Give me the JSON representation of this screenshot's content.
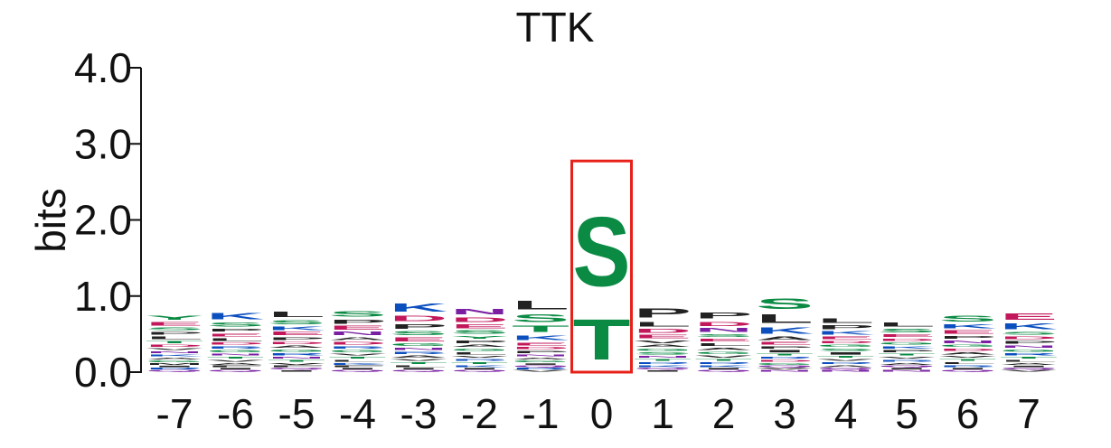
{
  "chart_data": {
    "type": "sequence-logo",
    "title": "TTK",
    "ylabel": "bits",
    "ylim": [
      0,
      4
    ],
    "yticks": [
      {
        "value": 0,
        "label": "0.0"
      },
      {
        "value": 1,
        "label": "1.0"
      },
      {
        "value": 2,
        "label": "2.0"
      },
      {
        "value": 3,
        "label": "3.0"
      },
      {
        "value": 4,
        "label": "4.0"
      }
    ],
    "positions": [
      {
        "label": "-7",
        "letters": [
          {
            "char": "Y",
            "bits": 0.09
          },
          {
            "char": "E",
            "bits": 0.07
          },
          {
            "char": "L",
            "bits": 0.06
          },
          {
            "char": "P",
            "bits": 0.06
          },
          {
            "char": "D",
            "bits": 0.05
          },
          {
            "char": "S",
            "bits": 0.06
          },
          {
            "char": "T",
            "bits": 0.05
          },
          {
            "char": "G",
            "bits": 0.04
          },
          {
            "char": "A",
            "bits": 0.04
          },
          {
            "char": "K",
            "bits": 0.04
          },
          {
            "char": "N",
            "bits": 0.04
          },
          {
            "char": "Q",
            "bits": 0.03
          },
          {
            "char": "V",
            "bits": 0.04
          },
          {
            "char": "R",
            "bits": 0.03
          },
          {
            "char": "I",
            "bits": 0.03
          },
          {
            "char": "M",
            "bits": 0.03
          }
        ]
      },
      {
        "label": "-6",
        "letters": [
          {
            "char": "K",
            "bits": 0.13
          },
          {
            "char": "S",
            "bits": 0.09
          },
          {
            "char": "L",
            "bits": 0.06
          },
          {
            "char": "E",
            "bits": 0.06
          },
          {
            "char": "P",
            "bits": 0.06
          },
          {
            "char": "G",
            "bits": 0.05
          },
          {
            "char": "R",
            "bits": 0.05
          },
          {
            "char": "D",
            "bits": 0.05
          },
          {
            "char": "A",
            "bits": 0.04
          },
          {
            "char": "V",
            "bits": 0.04
          },
          {
            "char": "T",
            "bits": 0.04
          },
          {
            "char": "N",
            "bits": 0.04
          },
          {
            "char": "Q",
            "bits": 0.03
          },
          {
            "char": "I",
            "bits": 0.03
          },
          {
            "char": "F",
            "bits": 0.03
          }
        ]
      },
      {
        "label": "-5",
        "letters": [
          {
            "char": "L",
            "bits": 0.11
          },
          {
            "char": "S",
            "bits": 0.09
          },
          {
            "char": "E",
            "bits": 0.07
          },
          {
            "char": "K",
            "bits": 0.07
          },
          {
            "char": "P",
            "bits": 0.06
          },
          {
            "char": "R",
            "bits": 0.05
          },
          {
            "char": "G",
            "bits": 0.05
          },
          {
            "char": "A",
            "bits": 0.05
          },
          {
            "char": "D",
            "bits": 0.05
          },
          {
            "char": "V",
            "bits": 0.04
          },
          {
            "char": "T",
            "bits": 0.04
          },
          {
            "char": "N",
            "bits": 0.04
          },
          {
            "char": "I",
            "bits": 0.03
          },
          {
            "char": "Q",
            "bits": 0.03
          },
          {
            "char": "F",
            "bits": 0.03
          }
        ]
      },
      {
        "label": "-4",
        "letters": [
          {
            "char": "S",
            "bits": 0.11
          },
          {
            "char": "P",
            "bits": 0.09
          },
          {
            "char": "E",
            "bits": 0.08
          },
          {
            "char": "N",
            "bits": 0.07
          },
          {
            "char": "D",
            "bits": 0.06
          },
          {
            "char": "A",
            "bits": 0.06
          },
          {
            "char": "G",
            "bits": 0.05
          },
          {
            "char": "R",
            "bits": 0.05
          },
          {
            "char": "K",
            "bits": 0.04
          },
          {
            "char": "L",
            "bits": 0.04
          },
          {
            "char": "T",
            "bits": 0.04
          },
          {
            "char": "V",
            "bits": 0.04
          },
          {
            "char": "Q",
            "bits": 0.03
          },
          {
            "char": "I",
            "bits": 0.03
          },
          {
            "char": "F",
            "bits": 0.03
          }
        ]
      },
      {
        "label": "-3",
        "letters": [
          {
            "char": "K",
            "bits": 0.17
          },
          {
            "char": "D",
            "bits": 0.11
          },
          {
            "char": "P",
            "bits": 0.1
          },
          {
            "char": "E",
            "bits": 0.08
          },
          {
            "char": "S",
            "bits": 0.08
          },
          {
            "char": "G",
            "bits": 0.06
          },
          {
            "char": "A",
            "bits": 0.05
          },
          {
            "char": "R",
            "bits": 0.05
          },
          {
            "char": "N",
            "bits": 0.05
          },
          {
            "char": "L",
            "bits": 0.04
          },
          {
            "char": "T",
            "bits": 0.04
          },
          {
            "char": "V",
            "bits": 0.04
          },
          {
            "char": "Q",
            "bits": 0.03
          },
          {
            "char": "I",
            "bits": 0.03
          }
        ]
      },
      {
        "label": "-2",
        "letters": [
          {
            "char": "N",
            "bits": 0.11
          },
          {
            "char": "D",
            "bits": 0.1
          },
          {
            "char": "E",
            "bits": 0.08
          },
          {
            "char": "S",
            "bits": 0.07
          },
          {
            "char": "P",
            "bits": 0.06
          },
          {
            "char": "Y",
            "bits": 0.06
          },
          {
            "char": "L",
            "bits": 0.05
          },
          {
            "char": "G",
            "bits": 0.05
          },
          {
            "char": "A",
            "bits": 0.05
          },
          {
            "char": "K",
            "bits": 0.04
          },
          {
            "char": "T",
            "bits": 0.04
          },
          {
            "char": "R",
            "bits": 0.04
          },
          {
            "char": "V",
            "bits": 0.04
          },
          {
            "char": "Q",
            "bits": 0.03
          },
          {
            "char": "I",
            "bits": 0.03
          }
        ]
      },
      {
        "label": "-1",
        "letters": [
          {
            "char": "L",
            "bits": 0.18
          },
          {
            "char": "S",
            "bits": 0.16
          },
          {
            "char": "T",
            "bits": 0.13
          },
          {
            "char": "K",
            "bits": 0.1
          },
          {
            "char": "E",
            "bits": 0.06
          },
          {
            "char": "P",
            "bits": 0.05
          },
          {
            "char": "D",
            "bits": 0.05
          },
          {
            "char": "G",
            "bits": 0.04
          },
          {
            "char": "A",
            "bits": 0.04
          },
          {
            "char": "N",
            "bits": 0.04
          },
          {
            "char": "V",
            "bits": 0.03
          },
          {
            "char": "R",
            "bits": 0.03
          },
          {
            "char": "Q",
            "bits": 0.03
          },
          {
            "char": "I",
            "bits": 0.03
          }
        ]
      },
      {
        "label": "0",
        "letters": [
          {
            "char": "S",
            "bits": 1.45
          },
          {
            "char": "T",
            "bits": 0.85
          }
        ]
      },
      {
        "label": "1",
        "letters": [
          {
            "char": "P",
            "bits": 0.19
          },
          {
            "char": "L",
            "bits": 0.1
          },
          {
            "char": "D",
            "bits": 0.08
          },
          {
            "char": "E",
            "bits": 0.07
          },
          {
            "char": "V",
            "bits": 0.06
          },
          {
            "char": "S",
            "bits": 0.05
          },
          {
            "char": "G",
            "bits": 0.05
          },
          {
            "char": "A",
            "bits": 0.05
          },
          {
            "char": "K",
            "bits": 0.04
          },
          {
            "char": "R",
            "bits": 0.04
          },
          {
            "char": "T",
            "bits": 0.04
          },
          {
            "char": "N",
            "bits": 0.04
          },
          {
            "char": "I",
            "bits": 0.03
          },
          {
            "char": "Q",
            "bits": 0.03
          }
        ]
      },
      {
        "label": "2",
        "letters": [
          {
            "char": "P",
            "bits": 0.12
          },
          {
            "char": "D",
            "bits": 0.09
          },
          {
            "char": "N",
            "bits": 0.08
          },
          {
            "char": "L",
            "bits": 0.06
          },
          {
            "char": "E",
            "bits": 0.06
          },
          {
            "char": "S",
            "bits": 0.06
          },
          {
            "char": "V",
            "bits": 0.05
          },
          {
            "char": "G",
            "bits": 0.05
          },
          {
            "char": "A",
            "bits": 0.05
          },
          {
            "char": "K",
            "bits": 0.04
          },
          {
            "char": "R",
            "bits": 0.04
          },
          {
            "char": "T",
            "bits": 0.04
          },
          {
            "char": "Q",
            "bits": 0.03
          },
          {
            "char": "I",
            "bits": 0.03
          }
        ]
      },
      {
        "label": "3",
        "letters": [
          {
            "char": "S",
            "bits": 0.22
          },
          {
            "char": "L",
            "bits": 0.18
          },
          {
            "char": "K",
            "bits": 0.13
          },
          {
            "char": "A",
            "bits": 0.07
          },
          {
            "char": "E",
            "bits": 0.06
          },
          {
            "char": "I",
            "bits": 0.05
          },
          {
            "char": "P",
            "bits": 0.05
          },
          {
            "char": "G",
            "bits": 0.04
          },
          {
            "char": "D",
            "bits": 0.04
          },
          {
            "char": "R",
            "bits": 0.04
          },
          {
            "char": "T",
            "bits": 0.04
          },
          {
            "char": "N",
            "bits": 0.03
          },
          {
            "char": "V",
            "bits": 0.03
          },
          {
            "char": "Q",
            "bits": 0.03
          }
        ]
      },
      {
        "label": "4",
        "letters": [
          {
            "char": "L",
            "bits": 0.1
          },
          {
            "char": "P",
            "bits": 0.08
          },
          {
            "char": "K",
            "bits": 0.07
          },
          {
            "char": "E",
            "bits": 0.06
          },
          {
            "char": "I",
            "bits": 0.05
          },
          {
            "char": "S",
            "bits": 0.05
          },
          {
            "char": "G",
            "bits": 0.05
          },
          {
            "char": "D",
            "bits": 0.05
          },
          {
            "char": "A",
            "bits": 0.04
          },
          {
            "char": "R",
            "bits": 0.04
          },
          {
            "char": "V",
            "bits": 0.04
          },
          {
            "char": "T",
            "bits": 0.04
          },
          {
            "char": "N",
            "bits": 0.03
          },
          {
            "char": "Q",
            "bits": 0.03
          }
        ]
      },
      {
        "label": "5",
        "letters": [
          {
            "char": "L",
            "bits": 0.09
          },
          {
            "char": "S",
            "bits": 0.07
          },
          {
            "char": "E",
            "bits": 0.06
          },
          {
            "char": "P",
            "bits": 0.05
          },
          {
            "char": "K",
            "bits": 0.05
          },
          {
            "char": "G",
            "bits": 0.05
          },
          {
            "char": "D",
            "bits": 0.05
          },
          {
            "char": "A",
            "bits": 0.04
          },
          {
            "char": "R",
            "bits": 0.04
          },
          {
            "char": "V",
            "bits": 0.04
          },
          {
            "char": "T",
            "bits": 0.04
          },
          {
            "char": "N",
            "bits": 0.03
          },
          {
            "char": "I",
            "bits": 0.03
          },
          {
            "char": "Q",
            "bits": 0.03
          }
        ]
      },
      {
        "label": "6",
        "letters": [
          {
            "char": "S",
            "bits": 0.12
          },
          {
            "char": "K",
            "bits": 0.08
          },
          {
            "char": "E",
            "bits": 0.07
          },
          {
            "char": "N",
            "bits": 0.06
          },
          {
            "char": "P",
            "bits": 0.06
          },
          {
            "char": "A",
            "bits": 0.05
          },
          {
            "char": "D",
            "bits": 0.05
          },
          {
            "char": "G",
            "bits": 0.05
          },
          {
            "char": "R",
            "bits": 0.04
          },
          {
            "char": "L",
            "bits": 0.04
          },
          {
            "char": "T",
            "bits": 0.04
          },
          {
            "char": "V",
            "bits": 0.04
          },
          {
            "char": "Q",
            "bits": 0.03
          },
          {
            "char": "I",
            "bits": 0.03
          }
        ]
      },
      {
        "label": "7",
        "letters": [
          {
            "char": "E",
            "bits": 0.13
          },
          {
            "char": "K",
            "bits": 0.12
          },
          {
            "char": "P",
            "bits": 0.06
          },
          {
            "char": "D",
            "bits": 0.06
          },
          {
            "char": "S",
            "bits": 0.06
          },
          {
            "char": "R",
            "bits": 0.05
          },
          {
            "char": "G",
            "bits": 0.05
          },
          {
            "char": "N",
            "bits": 0.05
          },
          {
            "char": "A",
            "bits": 0.04
          },
          {
            "char": "L",
            "bits": 0.04
          },
          {
            "char": "T",
            "bits": 0.04
          },
          {
            "char": "V",
            "bits": 0.03
          },
          {
            "char": "Q",
            "bits": 0.03
          },
          {
            "char": "I",
            "bits": 0.03
          }
        ]
      }
    ],
    "highlight": {
      "position": "0",
      "color": "#e8201a"
    },
    "colors": {
      "acidic": "#c2185b",
      "basic": "#0b4fbf",
      "polar": "#0a8a43",
      "hydrophobic": "#222222",
      "amide": "#7a1fa2"
    },
    "residue_groups": {
      "acidic": [
        "D",
        "E"
      ],
      "basic": [
        "K",
        "R",
        "H"
      ],
      "polar": [
        "S",
        "T",
        "G",
        "Y",
        "C"
      ],
      "amide": [
        "N",
        "Q"
      ],
      "hydrophobic": [
        "A",
        "V",
        "L",
        "I",
        "P",
        "F",
        "M",
        "W"
      ]
    }
  }
}
